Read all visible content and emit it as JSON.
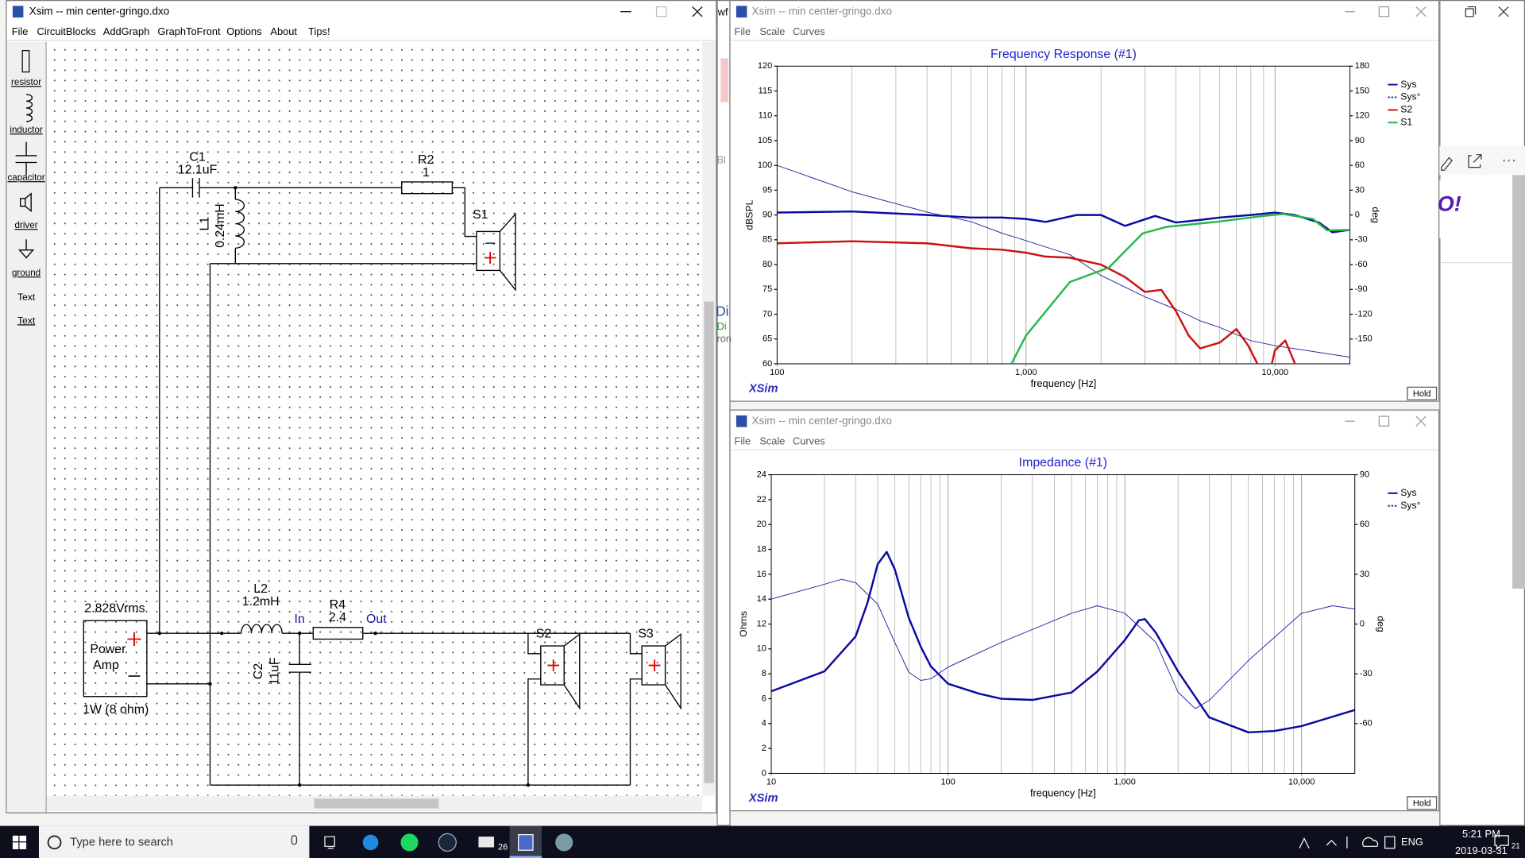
{
  "schematic_window": {
    "title": "Xsim -- min center-gringo.dxo",
    "menu": [
      "File",
      "CircuitBlocks",
      "AddGraph",
      "GraphToFront",
      "Options",
      "About",
      "Tips!"
    ],
    "toolbox": [
      "resistor",
      "inductor",
      "capacitor",
      "driver",
      "ground",
      "Text",
      "Text"
    ],
    "labels": {
      "c1_name": "C1",
      "c1_value": "12.1uF",
      "r2_name": "R2",
      "r2_value": "1",
      "s1_name": "S1",
      "l1_name": "L1",
      "l1_value": "0.24mH",
      "source_voltage": "2.828Vrms",
      "source_name_1": "Power",
      "source_name_2": "Amp",
      "source_power": "1W (8 ohm)",
      "l2_name": "L2",
      "l2_value": "1.2mH",
      "in": "In",
      "r4_name": "R4",
      "r4_value": "2.4",
      "out": "Out",
      "c2_name": "C2",
      "c2_value": "11uF",
      "s2_name": "S2",
      "s3_name": "S3"
    }
  },
  "frequency_window": {
    "title": "Xsim -- min center-gringo.dxo",
    "menu": [
      "File",
      "Scale",
      "Curves"
    ],
    "brand": "XSim",
    "hold": "Hold",
    "graph": {
      "type": "line",
      "title": "Frequency Response (#1)",
      "x_label": "frequency [Hz]",
      "y_label": "dBSPL",
      "y2_label": "deg",
      "log_x": true,
      "xlim": [
        100,
        20000
      ],
      "xticks": [
        100,
        {
          "value": 1000,
          "label": "1,000"
        },
        {
          "value": 10000,
          "label": "10,000"
        }
      ],
      "ylim": [
        60,
        120
      ],
      "yticks": [
        60,
        65,
        70,
        75,
        80,
        85,
        90,
        95,
        100,
        105,
        110,
        115,
        120
      ],
      "y2lim": [
        -180,
        180
      ],
      "y2ticks": [
        180,
        150,
        120,
        90,
        60,
        30,
        0,
        -30,
        -60,
        -90,
        -120,
        -150
      ],
      "series": [
        {
          "name": "Sys",
          "color": "#0a0aa0",
          "x": [
            100,
            200,
            400,
            600,
            800,
            1000,
            1200,
            1600,
            2000,
            2500,
            3300,
            4000,
            5000,
            6000,
            8000,
            10000,
            12000,
            15000,
            17000,
            20000
          ],
          "values": [
            90.5,
            90.7,
            90,
            89.5,
            89.5,
            89.2,
            88.6,
            90,
            90,
            87.8,
            89.8,
            88.5,
            89,
            89.5,
            90,
            90.5,
            90,
            88.5,
            86.5,
            87
          ]
        },
        {
          "name": "Sys°",
          "color": "#2a2aa8",
          "axis": "y2",
          "x": [
            100,
            200,
            400,
            600,
            800,
            1000,
            1500,
            2000,
            3000,
            4000,
            5000,
            6000,
            8000,
            10000,
            20000
          ],
          "values": [
            60,
            28,
            3.5,
            -8,
            -22,
            -31,
            -48,
            -73,
            -99,
            -114,
            -128,
            -136,
            -152,
            -158,
            -172
          ]
        },
        {
          "name": "S2",
          "color": "#cc1111",
          "x": [
            100,
            200,
            400,
            600,
            800,
            1000,
            1200,
            1500,
            2000,
            2500,
            3000,
            3500,
            4000,
            4500,
            5000,
            6000,
            7000,
            7800,
            8500,
            9200,
            10000,
            11000,
            12500
          ],
          "values": [
            84.3,
            84.7,
            84.3,
            83.3,
            83,
            82.4,
            81.6,
            81.4,
            80,
            77.5,
            74.5,
            74.9,
            70.6,
            65.7,
            63.1,
            64.3,
            67,
            63.7,
            60,
            55,
            62.7,
            64.7,
            58
          ]
        },
        {
          "name": "S1",
          "color": "#22b84a",
          "x": [
            873,
            1000,
            1500,
            2150,
            2940,
            3670,
            5800,
            9000,
            10800,
            14200,
            16200,
            20000
          ],
          "values": [
            60,
            65.7,
            76.5,
            79.4,
            86.3,
            87.6,
            88.6,
            89.8,
            90.2,
            89.2,
            86.9,
            87
          ]
        }
      ]
    }
  },
  "impedance_window": {
    "title": "Xsim -- min center-gringo.dxo",
    "menu": [
      "File",
      "Scale",
      "Curves"
    ],
    "brand": "XSim",
    "hold": "Hold",
    "graph": {
      "type": "line",
      "title": "Impedance (#1)",
      "x_label": "frequency [Hz]",
      "y_label": "Ohms",
      "y2_label": "deg",
      "log_x": true,
      "xlim": [
        10,
        20000
      ],
      "xticks": [
        10,
        100,
        {
          "value": 1000,
          "label": "1,000"
        },
        {
          "value": 10000,
          "label": "10,000"
        }
      ],
      "ylim": [
        0,
        24
      ],
      "yticks": [
        0,
        2,
        4,
        6,
        8,
        10,
        12,
        14,
        16,
        18,
        20,
        22,
        24
      ],
      "y2lim": [
        -90,
        90
      ],
      "y2ticks": [
        90,
        60,
        30,
        0,
        -30,
        -60
      ],
      "series": [
        {
          "name": "Sys",
          "color": "#0a0aa0",
          "x": [
            10,
            20,
            30,
            35,
            40,
            45,
            50,
            60,
            70,
            80,
            100,
            150,
            200,
            300,
            500,
            700,
            1000,
            1200,
            1300,
            1500,
            2000,
            3000,
            5000,
            7000,
            10000,
            20000
          ],
          "values": [
            6.6,
            8.2,
            11,
            13.7,
            16.8,
            17.8,
            16.4,
            12.5,
            10.2,
            8.6,
            7.2,
            6.4,
            6,
            5.9,
            6.5,
            8.2,
            10.7,
            12.3,
            12.4,
            11.3,
            8.2,
            4.5,
            3.3,
            3.4,
            3.8,
            5.1
          ]
        },
        {
          "name": "Sys°",
          "color": "#2a2aa8",
          "axis": "y2",
          "x": [
            10,
            20,
            25,
            30,
            40,
            50,
            60,
            70,
            80,
            100,
            200,
            500,
            700,
            1000,
            1500,
            2000,
            2500,
            3000,
            5000,
            10000,
            15000,
            20000
          ],
          "values": [
            15,
            24,
            27,
            25,
            12,
            -11,
            -29,
            -34,
            -33,
            -26,
            -11,
            6.5,
            11,
            6.5,
            -11,
            -41,
            -51,
            -46,
            -22,
            6.5,
            11,
            9
          ]
        }
      ]
    }
  },
  "background_windows": {
    "fragments": [
      "wf",
      "Bl",
      "Di",
      "Di",
      "ron"
    ],
    "logo": "O!"
  },
  "taskbar": {
    "search_placeholder": "Type here to search",
    "mail_badge": "26",
    "language": "ENG",
    "time": "5:21 PM",
    "date": "2019-03-31",
    "notifications": "21"
  }
}
